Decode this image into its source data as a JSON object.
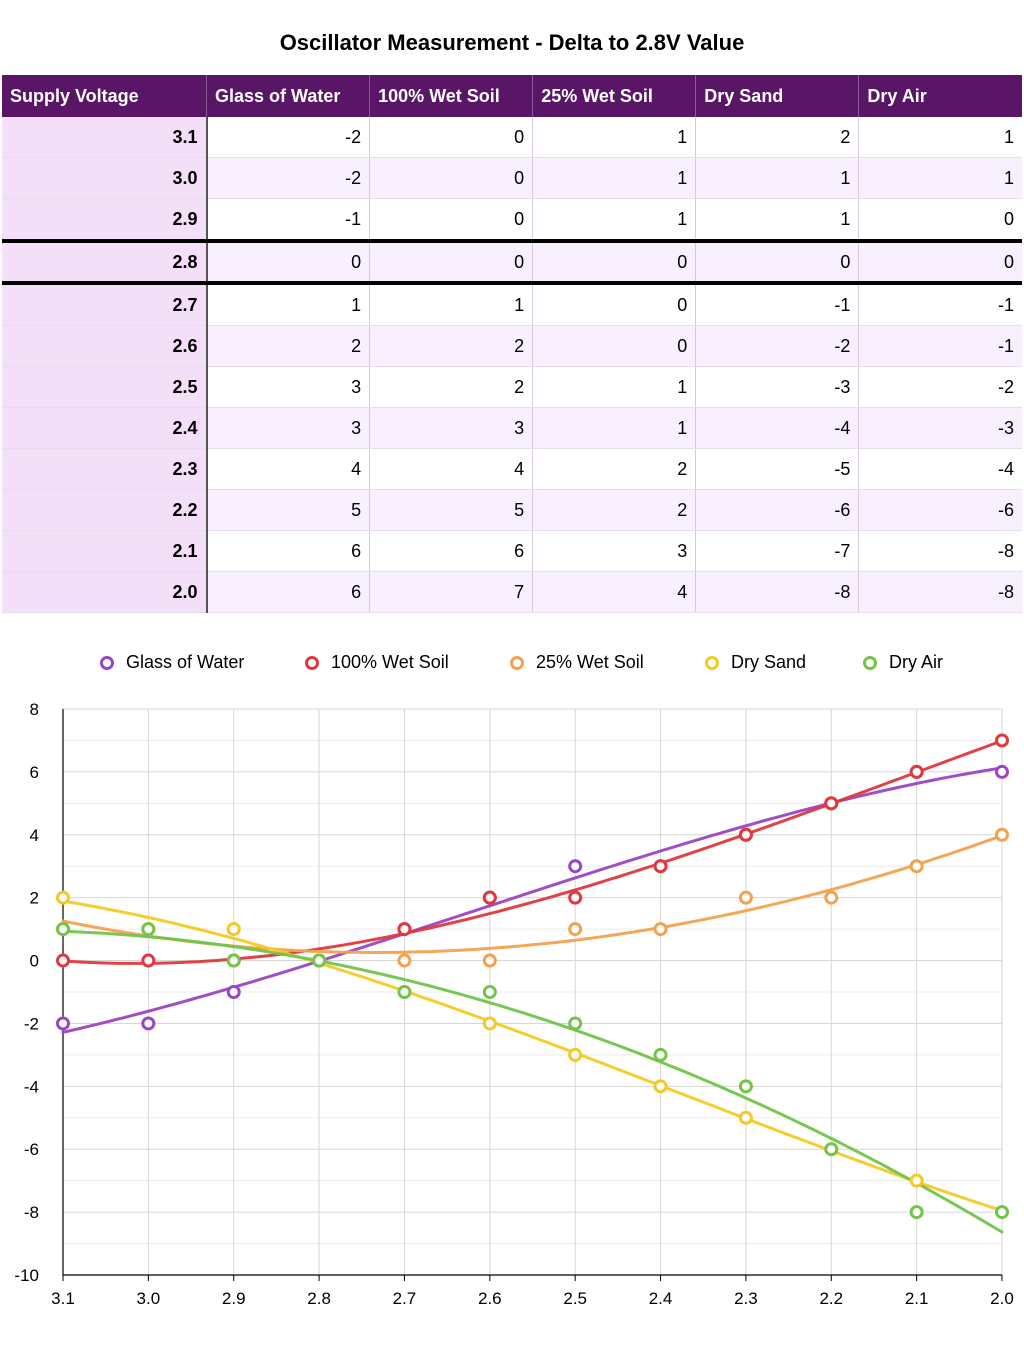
{
  "title": "Oscillator Measurement - Delta to 2.8V Value",
  "table": {
    "headers": [
      "Supply Voltage",
      "Glass of Water",
      "100% Wet Soil",
      "25% Wet Soil",
      "Dry Sand",
      "Dry Air"
    ],
    "rows": [
      [
        "3.1",
        "-2",
        "0",
        "1",
        "2",
        "1"
      ],
      [
        "3.0",
        "-2",
        "0",
        "1",
        "1",
        "1"
      ],
      [
        "2.9",
        "-1",
        "0",
        "1",
        "1",
        "0"
      ],
      [
        "2.8",
        "0",
        "0",
        "0",
        "0",
        "0"
      ],
      [
        "2.7",
        "1",
        "1",
        "0",
        "-1",
        "-1"
      ],
      [
        "2.6",
        "2",
        "2",
        "0",
        "-2",
        "-1"
      ],
      [
        "2.5",
        "3",
        "2",
        "1",
        "-3",
        "-2"
      ],
      [
        "2.4",
        "3",
        "3",
        "1",
        "-4",
        "-3"
      ],
      [
        "2.3",
        "4",
        "4",
        "2",
        "-5",
        "-4"
      ],
      [
        "2.2",
        "5",
        "5",
        "2",
        "-6",
        "-6"
      ],
      [
        "2.1",
        "6",
        "6",
        "3",
        "-7",
        "-8"
      ],
      [
        "2.0",
        "6",
        "7",
        "4",
        "-8",
        "-8"
      ]
    ]
  },
  "chart_data": {
    "type": "scatter",
    "categories": [
      "3.1",
      "3.0",
      "2.9",
      "2.8",
      "2.7",
      "2.6",
      "2.5",
      "2.4",
      "2.3",
      "2.2",
      "2.1",
      "2.0"
    ],
    "ylim": [
      -10,
      8
    ],
    "yticks": [
      "8",
      "6",
      "4",
      "2",
      "0",
      "-2",
      "-4",
      "-6",
      "-8",
      "-10"
    ],
    "ytick_values": [
      8,
      6,
      4,
      2,
      0,
      -2,
      -4,
      -6,
      -8,
      -10
    ],
    "grid": true,
    "legend_position": "top",
    "trendline": "polynomial",
    "series": [
      {
        "name": "Glass of Water",
        "color": "#9b45c2",
        "values": [
          -2,
          -2,
          -1,
          0,
          1,
          2,
          3,
          3,
          4,
          5,
          6,
          6
        ]
      },
      {
        "name": "100% Wet Soil",
        "color": "#e0383c",
        "values": [
          0,
          0,
          0,
          0,
          1,
          2,
          2,
          3,
          4,
          5,
          6,
          7
        ]
      },
      {
        "name": "25% Wet Soil",
        "color": "#f2a24e",
        "values": [
          1,
          1,
          1,
          0,
          0,
          0,
          1,
          1,
          2,
          2,
          3,
          4
        ]
      },
      {
        "name": "Dry Sand",
        "color": "#f5c924",
        "values": [
          2,
          1,
          1,
          0,
          -1,
          -2,
          -3,
          -4,
          -5,
          -6,
          -7,
          -8
        ]
      },
      {
        "name": "Dry Air",
        "color": "#72c44a",
        "values": [
          1,
          1,
          0,
          0,
          -1,
          -1,
          -2,
          -3,
          -4,
          -6,
          -8,
          -8
        ]
      }
    ]
  }
}
